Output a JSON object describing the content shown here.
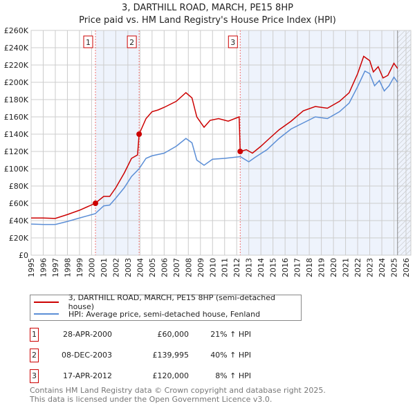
{
  "chart_data": {
    "type": "line",
    "title": "3, DARTHILL ROAD, MARCH, PE15 8HP",
    "subtitle": "Price paid vs. HM Land Registry's House Price Index (HPI)",
    "xlim": [
      1995,
      2026.4
    ],
    "ylim": [
      0,
      260000
    ],
    "x_ticks": [
      "1995",
      "1996",
      "1997",
      "1998",
      "1999",
      "2000",
      "2001",
      "2002",
      "2003",
      "2004",
      "2005",
      "2006",
      "2007",
      "2008",
      "2009",
      "2010",
      "2011",
      "2012",
      "2013",
      "2014",
      "2015",
      "2016",
      "2017",
      "2018",
      "2019",
      "2020",
      "2021",
      "2022",
      "2023",
      "2024",
      "2025",
      "2026"
    ],
    "y_ticks": [
      {
        "v": 0,
        "l": "£0"
      },
      {
        "v": 20000,
        "l": "£20K"
      },
      {
        "v": 40000,
        "l": "£40K"
      },
      {
        "v": 60000,
        "l": "£60K"
      },
      {
        "v": 80000,
        "l": "£80K"
      },
      {
        "v": 100000,
        "l": "£100K"
      },
      {
        "v": 120000,
        "l": "£120K"
      },
      {
        "v": 140000,
        "l": "£140K"
      },
      {
        "v": 160000,
        "l": "£160K"
      },
      {
        "v": 180000,
        "l": "£180K"
      },
      {
        "v": 200000,
        "l": "£200K"
      },
      {
        "v": 220000,
        "l": "£220K"
      },
      {
        "v": 240000,
        "l": "£240K"
      },
      {
        "v": 260000,
        "l": "£260K"
      }
    ],
    "grid": true,
    "series": [
      {
        "name": "3, DARTHILL ROAD, MARCH, PE15 8HP (semi-detached house)",
        "color": "#cc0000",
        "points": [
          [
            1995,
            43000
          ],
          [
            1996,
            43000
          ],
          [
            1997,
            42500
          ],
          [
            1998,
            47000
          ],
          [
            1999,
            52000
          ],
          [
            2000.3,
            60000
          ],
          [
            2001,
            68000
          ],
          [
            2001.5,
            68000
          ],
          [
            2002,
            78000
          ],
          [
            2002.7,
            95000
          ],
          [
            2003.3,
            112000
          ],
          [
            2003.8,
            116000
          ],
          [
            2003.93,
            139995
          ],
          [
            2004.5,
            158000
          ],
          [
            2005,
            166000
          ],
          [
            2005.5,
            168000
          ],
          [
            2006,
            171000
          ],
          [
            2007,
            178000
          ],
          [
            2007.8,
            188000
          ],
          [
            2008.3,
            182000
          ],
          [
            2008.7,
            160000
          ],
          [
            2009.3,
            148000
          ],
          [
            2009.8,
            156000
          ],
          [
            2010.5,
            158000
          ],
          [
            2011.3,
            155000
          ],
          [
            2012.2,
            160000
          ],
          [
            2012.29,
            120000
          ],
          [
            2012.8,
            122000
          ],
          [
            2013.3,
            118000
          ],
          [
            2014,
            126000
          ],
          [
            2014.7,
            135000
          ],
          [
            2015.5,
            145000
          ],
          [
            2016.5,
            155000
          ],
          [
            2017.5,
            167000
          ],
          [
            2018.5,
            172000
          ],
          [
            2019.5,
            170000
          ],
          [
            2020.5,
            178000
          ],
          [
            2021.3,
            188000
          ],
          [
            2022,
            210000
          ],
          [
            2022.5,
            230000
          ],
          [
            2023,
            225000
          ],
          [
            2023.3,
            212000
          ],
          [
            2023.7,
            218000
          ],
          [
            2024.1,
            205000
          ],
          [
            2024.5,
            208000
          ],
          [
            2025,
            222000
          ],
          [
            2025.3,
            216000
          ]
        ]
      },
      {
        "name": "HPI: Average price, semi-detached house, Fenland",
        "color": "#5b8ed6",
        "points": [
          [
            1995,
            36000
          ],
          [
            1996,
            35500
          ],
          [
            1997,
            35500
          ],
          [
            1998,
            39000
          ],
          [
            1999,
            43000
          ],
          [
            2000.3,
            48000
          ],
          [
            2001,
            57000
          ],
          [
            2001.5,
            58000
          ],
          [
            2002,
            66000
          ],
          [
            2002.7,
            78000
          ],
          [
            2003.3,
            91000
          ],
          [
            2003.93,
            100000
          ],
          [
            2004.5,
            112000
          ],
          [
            2005,
            115000
          ],
          [
            2006,
            118000
          ],
          [
            2007,
            126000
          ],
          [
            2007.8,
            135000
          ],
          [
            2008.3,
            130000
          ],
          [
            2008.7,
            110000
          ],
          [
            2009.3,
            104000
          ],
          [
            2010,
            111000
          ],
          [
            2011,
            112000
          ],
          [
            2012.3,
            114000
          ],
          [
            2013,
            108000
          ],
          [
            2013.5,
            113000
          ],
          [
            2014.5,
            122000
          ],
          [
            2015.5,
            135000
          ],
          [
            2016.5,
            146000
          ],
          [
            2017.5,
            153000
          ],
          [
            2018.5,
            160000
          ],
          [
            2019.5,
            158000
          ],
          [
            2020.5,
            166000
          ],
          [
            2021.3,
            176000
          ],
          [
            2022,
            195000
          ],
          [
            2022.6,
            213000
          ],
          [
            2023,
            210000
          ],
          [
            2023.4,
            196000
          ],
          [
            2023.8,
            202000
          ],
          [
            2024.2,
            190000
          ],
          [
            2024.6,
            196000
          ],
          [
            2025,
            206000
          ],
          [
            2025.3,
            200000
          ]
        ]
      }
    ],
    "sales": [
      {
        "label": "1",
        "x": 2000.32,
        "y": 60000,
        "date": "28-APR-2000",
        "price": "£60,000",
        "hpi": "21% ↑ HPI"
      },
      {
        "label": "2",
        "x": 2003.93,
        "y": 139995,
        "date": "08-DEC-2003",
        "price": "£139,995",
        "hpi": "40% ↑ HPI"
      },
      {
        "label": "3",
        "x": 2012.29,
        "y": 120000,
        "date": "17-APR-2012",
        "price": "£120,000",
        "hpi": "8% ↑ HPI"
      }
    ],
    "shaded_ranges": [
      [
        2000.32,
        2003.93
      ],
      [
        2012.29,
        2026.4
      ]
    ],
    "hatched_from": 2025.3,
    "legend": "below"
  },
  "footer": {
    "line1": "Contains HM Land Registry data © Crown copyright and database right 2025.",
    "line2": "This data is licensed under the Open Government Licence v3.0."
  }
}
